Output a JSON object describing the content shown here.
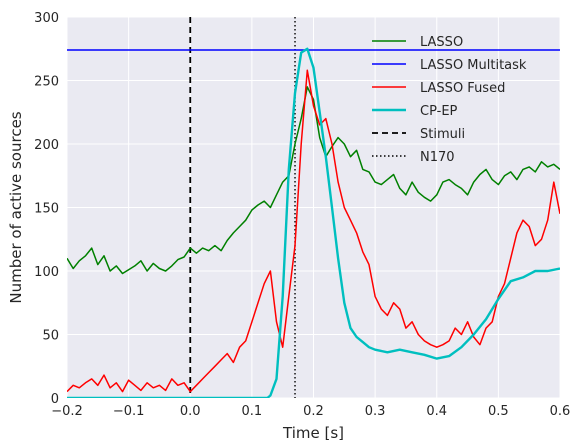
{
  "chart_data": {
    "type": "line",
    "title": "",
    "xlabel": "Time [s]",
    "ylabel": "Number of active sources",
    "xlim": [
      -0.2,
      0.6
    ],
    "ylim": [
      0,
      300
    ],
    "xticks": [
      -0.2,
      -0.1,
      0.0,
      0.1,
      0.2,
      0.3,
      0.4,
      0.5,
      0.6
    ],
    "xtick_labels": [
      "−0.2",
      "−0.1",
      "0.0",
      "0.1",
      "0.2",
      "0.3",
      "0.4",
      "0.5",
      "0.6"
    ],
    "yticks": [
      0,
      50,
      100,
      150,
      200,
      250,
      300
    ],
    "ytick_labels": [
      "0",
      "50",
      "100",
      "150",
      "200",
      "250",
      "300"
    ],
    "grid": true,
    "background": "#eaeaf2",
    "legend_position": "top-right",
    "series": [
      {
        "name": "LASSO",
        "color": "#008000",
        "style": "solid",
        "x": [
          -0.2,
          -0.19,
          -0.18,
          -0.17,
          -0.16,
          -0.15,
          -0.14,
          -0.13,
          -0.12,
          -0.11,
          -0.1,
          -0.09,
          -0.08,
          -0.07,
          -0.06,
          -0.05,
          -0.04,
          -0.03,
          -0.02,
          -0.01,
          0.0,
          0.01,
          0.02,
          0.03,
          0.04,
          0.05,
          0.06,
          0.07,
          0.08,
          0.09,
          0.1,
          0.11,
          0.12,
          0.13,
          0.14,
          0.15,
          0.16,
          0.17,
          0.18,
          0.19,
          0.2,
          0.21,
          0.22,
          0.23,
          0.24,
          0.25,
          0.26,
          0.27,
          0.28,
          0.29,
          0.3,
          0.31,
          0.32,
          0.33,
          0.34,
          0.35,
          0.36,
          0.37,
          0.38,
          0.39,
          0.4,
          0.41,
          0.42,
          0.43,
          0.44,
          0.45,
          0.46,
          0.47,
          0.48,
          0.49,
          0.5,
          0.51,
          0.52,
          0.53,
          0.54,
          0.55,
          0.56,
          0.57,
          0.58,
          0.59,
          0.6
        ],
        "y": [
          110,
          102,
          108,
          112,
          118,
          105,
          112,
          100,
          104,
          98,
          101,
          104,
          108,
          100,
          106,
          102,
          100,
          104,
          109,
          111,
          118,
          114,
          118,
          116,
          120,
          116,
          124,
          130,
          135,
          140,
          148,
          152,
          155,
          150,
          160,
          170,
          175,
          200,
          220,
          245,
          235,
          205,
          190,
          198,
          205,
          200,
          190,
          195,
          180,
          178,
          170,
          168,
          172,
          176,
          165,
          160,
          170,
          162,
          158,
          155,
          160,
          170,
          172,
          168,
          165,
          160,
          170,
          176,
          180,
          172,
          168,
          175,
          178,
          172,
          180,
          182,
          178,
          186,
          182,
          184,
          180
        ]
      },
      {
        "name": "LASSO Multitask",
        "color": "#0000ff",
        "style": "solid",
        "x": [
          -0.2,
          0.6
        ],
        "y": [
          274,
          274
        ]
      },
      {
        "name": "LASSO Fused",
        "color": "#ff0000",
        "style": "solid",
        "x": [
          -0.2,
          -0.19,
          -0.18,
          -0.17,
          -0.16,
          -0.15,
          -0.14,
          -0.13,
          -0.12,
          -0.11,
          -0.1,
          -0.09,
          -0.08,
          -0.07,
          -0.06,
          -0.05,
          -0.04,
          -0.03,
          -0.02,
          -0.01,
          0.0,
          0.01,
          0.02,
          0.03,
          0.04,
          0.05,
          0.06,
          0.07,
          0.08,
          0.09,
          0.1,
          0.11,
          0.12,
          0.13,
          0.14,
          0.15,
          0.16,
          0.17,
          0.18,
          0.19,
          0.2,
          0.21,
          0.22,
          0.23,
          0.24,
          0.25,
          0.26,
          0.27,
          0.28,
          0.29,
          0.3,
          0.31,
          0.32,
          0.33,
          0.34,
          0.35,
          0.36,
          0.37,
          0.38,
          0.39,
          0.4,
          0.41,
          0.42,
          0.43,
          0.44,
          0.45,
          0.46,
          0.47,
          0.48,
          0.49,
          0.5,
          0.51,
          0.52,
          0.53,
          0.54,
          0.55,
          0.56,
          0.57,
          0.58,
          0.59,
          0.6
        ],
        "y": [
          5,
          10,
          8,
          12,
          15,
          10,
          18,
          8,
          12,
          5,
          14,
          10,
          6,
          12,
          8,
          10,
          6,
          15,
          10,
          12,
          5,
          10,
          15,
          20,
          25,
          30,
          35,
          28,
          40,
          45,
          60,
          75,
          90,
          100,
          60,
          40,
          80,
          120,
          200,
          258,
          230,
          215,
          220,
          200,
          170,
          150,
          140,
          130,
          115,
          105,
          80,
          70,
          65,
          75,
          70,
          55,
          60,
          50,
          45,
          42,
          40,
          42,
          45,
          55,
          50,
          60,
          48,
          42,
          55,
          60,
          80,
          90,
          110,
          130,
          140,
          135,
          120,
          125,
          140,
          170,
          145
        ]
      },
      {
        "name": "CP-EP",
        "color": "#00bfbf",
        "style": "solid",
        "x": [
          -0.2,
          0.125,
          0.13,
          0.14,
          0.15,
          0.16,
          0.17,
          0.18,
          0.19,
          0.2,
          0.21,
          0.22,
          0.23,
          0.24,
          0.25,
          0.26,
          0.27,
          0.28,
          0.29,
          0.3,
          0.32,
          0.34,
          0.36,
          0.38,
          0.4,
          0.42,
          0.44,
          0.46,
          0.48,
          0.5,
          0.52,
          0.54,
          0.56,
          0.58,
          0.6
        ],
        "y": [
          0,
          0,
          2,
          15,
          80,
          180,
          240,
          272,
          275,
          260,
          225,
          190,
          150,
          110,
          75,
          55,
          48,
          44,
          40,
          38,
          36,
          38,
          36,
          34,
          31,
          33,
          40,
          50,
          62,
          78,
          92,
          95,
          100,
          100,
          102
        ]
      },
      {
        "name": "Stimuli",
        "color": "#000000",
        "style": "dashed",
        "vline": 0.0
      },
      {
        "name": "N170",
        "color": "#000000",
        "style": "dotted",
        "vline": 0.17
      }
    ]
  }
}
